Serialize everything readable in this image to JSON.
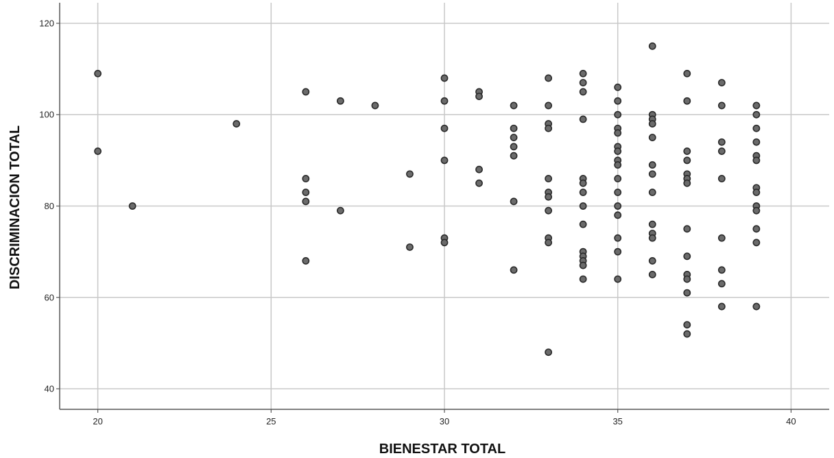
{
  "chart_data": {
    "type": "scatter",
    "xlabel": "BIENESTAR TOTAL",
    "ylabel": "DISCRIMINACION TOTAL",
    "xlim": [
      18.9,
      41.1
    ],
    "ylim": [
      35.5,
      124.5
    ],
    "xticks": [
      20,
      25,
      30,
      35,
      40
    ],
    "yticks": [
      40,
      60,
      80,
      100,
      120
    ],
    "grid": true,
    "colors": {
      "point_fill": "#6b6b6b",
      "point_stroke": "#2a2a2a",
      "grid": "#c8c8c8",
      "axis": "#555555"
    },
    "points": [
      {
        "x": 20,
        "y": 109
      },
      {
        "x": 20,
        "y": 92
      },
      {
        "x": 21,
        "y": 80
      },
      {
        "x": 24,
        "y": 98
      },
      {
        "x": 26,
        "y": 105
      },
      {
        "x": 26,
        "y": 86
      },
      {
        "x": 26,
        "y": 83
      },
      {
        "x": 26,
        "y": 81
      },
      {
        "x": 26,
        "y": 68
      },
      {
        "x": 27,
        "y": 103
      },
      {
        "x": 27,
        "y": 79
      },
      {
        "x": 28,
        "y": 102
      },
      {
        "x": 29,
        "y": 87
      },
      {
        "x": 29,
        "y": 71
      },
      {
        "x": 30,
        "y": 108
      },
      {
        "x": 30,
        "y": 103
      },
      {
        "x": 30,
        "y": 97
      },
      {
        "x": 30,
        "y": 90
      },
      {
        "x": 30,
        "y": 73
      },
      {
        "x": 30,
        "y": 72
      },
      {
        "x": 31,
        "y": 105
      },
      {
        "x": 31,
        "y": 104
      },
      {
        "x": 31,
        "y": 88
      },
      {
        "x": 31,
        "y": 85
      },
      {
        "x": 32,
        "y": 102
      },
      {
        "x": 32,
        "y": 97
      },
      {
        "x": 32,
        "y": 95
      },
      {
        "x": 32,
        "y": 93
      },
      {
        "x": 32,
        "y": 91
      },
      {
        "x": 32,
        "y": 81
      },
      {
        "x": 32,
        "y": 66
      },
      {
        "x": 33,
        "y": 108
      },
      {
        "x": 33,
        "y": 102
      },
      {
        "x": 33,
        "y": 98
      },
      {
        "x": 33,
        "y": 97
      },
      {
        "x": 33,
        "y": 86
      },
      {
        "x": 33,
        "y": 83
      },
      {
        "x": 33,
        "y": 82
      },
      {
        "x": 33,
        "y": 79
      },
      {
        "x": 33,
        "y": 73
      },
      {
        "x": 33,
        "y": 72
      },
      {
        "x": 33,
        "y": 48
      },
      {
        "x": 34,
        "y": 109
      },
      {
        "x": 34,
        "y": 107
      },
      {
        "x": 34,
        "y": 105
      },
      {
        "x": 34,
        "y": 99
      },
      {
        "x": 34,
        "y": 86
      },
      {
        "x": 34,
        "y": 85
      },
      {
        "x": 34,
        "y": 83
      },
      {
        "x": 34,
        "y": 80
      },
      {
        "x": 34,
        "y": 76
      },
      {
        "x": 34,
        "y": 70
      },
      {
        "x": 34,
        "y": 69
      },
      {
        "x": 34,
        "y": 68
      },
      {
        "x": 34,
        "y": 67
      },
      {
        "x": 34,
        "y": 64
      },
      {
        "x": 35,
        "y": 106
      },
      {
        "x": 35,
        "y": 103
      },
      {
        "x": 35,
        "y": 100
      },
      {
        "x": 35,
        "y": 97
      },
      {
        "x": 35,
        "y": 96
      },
      {
        "x": 35,
        "y": 93
      },
      {
        "x": 35,
        "y": 92
      },
      {
        "x": 35,
        "y": 90
      },
      {
        "x": 35,
        "y": 89
      },
      {
        "x": 35,
        "y": 86
      },
      {
        "x": 35,
        "y": 83
      },
      {
        "x": 35,
        "y": 80
      },
      {
        "x": 35,
        "y": 78
      },
      {
        "x": 35,
        "y": 73
      },
      {
        "x": 35,
        "y": 70
      },
      {
        "x": 35,
        "y": 64
      },
      {
        "x": 36,
        "y": 115
      },
      {
        "x": 36,
        "y": 100
      },
      {
        "x": 36,
        "y": 99
      },
      {
        "x": 36,
        "y": 98
      },
      {
        "x": 36,
        "y": 95
      },
      {
        "x": 36,
        "y": 89
      },
      {
        "x": 36,
        "y": 87
      },
      {
        "x": 36,
        "y": 83
      },
      {
        "x": 36,
        "y": 76
      },
      {
        "x": 36,
        "y": 74
      },
      {
        "x": 36,
        "y": 73
      },
      {
        "x": 36,
        "y": 68
      },
      {
        "x": 36,
        "y": 65
      },
      {
        "x": 37,
        "y": 109
      },
      {
        "x": 37,
        "y": 103
      },
      {
        "x": 37,
        "y": 92
      },
      {
        "x": 37,
        "y": 90
      },
      {
        "x": 37,
        "y": 87
      },
      {
        "x": 37,
        "y": 86
      },
      {
        "x": 37,
        "y": 85
      },
      {
        "x": 37,
        "y": 75
      },
      {
        "x": 37,
        "y": 69
      },
      {
        "x": 37,
        "y": 65
      },
      {
        "x": 37,
        "y": 64
      },
      {
        "x": 37,
        "y": 61
      },
      {
        "x": 37,
        "y": 54
      },
      {
        "x": 37,
        "y": 52
      },
      {
        "x": 38,
        "y": 107
      },
      {
        "x": 38,
        "y": 102
      },
      {
        "x": 38,
        "y": 94
      },
      {
        "x": 38,
        "y": 92
      },
      {
        "x": 38,
        "y": 86
      },
      {
        "x": 38,
        "y": 73
      },
      {
        "x": 38,
        "y": 66
      },
      {
        "x": 38,
        "y": 63
      },
      {
        "x": 38,
        "y": 58
      },
      {
        "x": 39,
        "y": 102
      },
      {
        "x": 39,
        "y": 100
      },
      {
        "x": 39,
        "y": 97
      },
      {
        "x": 39,
        "y": 94
      },
      {
        "x": 39,
        "y": 91
      },
      {
        "x": 39,
        "y": 90
      },
      {
        "x": 39,
        "y": 84
      },
      {
        "x": 39,
        "y": 83
      },
      {
        "x": 39,
        "y": 80
      },
      {
        "x": 39,
        "y": 79
      },
      {
        "x": 39,
        "y": 75
      },
      {
        "x": 39,
        "y": 72
      },
      {
        "x": 39,
        "y": 58
      }
    ]
  }
}
